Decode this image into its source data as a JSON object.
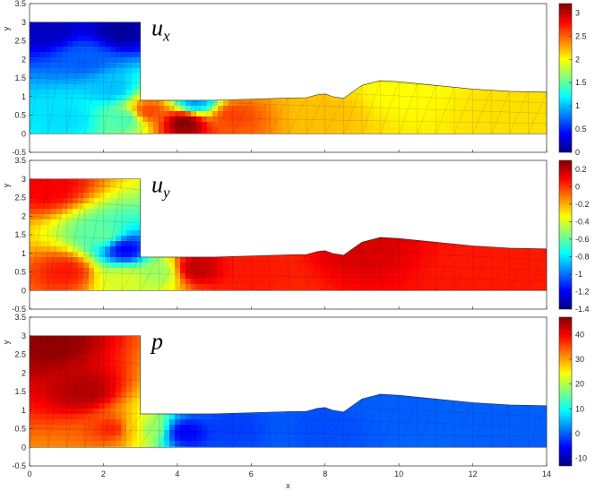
{
  "chart_data": [
    {
      "type": "heatmap",
      "field": "u",
      "field_subscript": "x",
      "xlabel": "",
      "ylabel": "y",
      "xlim": [
        0,
        14
      ],
      "ylim": [
        -0.5,
        3.5
      ],
      "x_ticks": [],
      "y_ticks": [
        "-0.5",
        "0",
        "0.5",
        "1",
        "1.5",
        "2",
        "2.5",
        "3",
        "3.5"
      ],
      "colorbar": {
        "limits": [
          0,
          3.2
        ],
        "colormap": "jet",
        "ticks": [
          "0",
          "0.5",
          "1",
          "1.5",
          "2",
          "2.5",
          "3"
        ]
      },
      "samples": [
        {
          "x": 0.5,
          "y": 2.8,
          "value": 0.2
        },
        {
          "x": 2.5,
          "y": 2.8,
          "value": 0.1
        },
        {
          "x": 1.5,
          "y": 2.0,
          "value": 0.7
        },
        {
          "x": 2.2,
          "y": 1.2,
          "value": 1.0
        },
        {
          "x": 1.0,
          "y": 0.4,
          "value": 1.1
        },
        {
          "x": 2.6,
          "y": 0.4,
          "value": 1.4
        },
        {
          "x": 3.2,
          "y": 0.6,
          "value": 2.6
        },
        {
          "x": 4.2,
          "y": 0.3,
          "value": 3.2
        },
        {
          "x": 4.5,
          "y": 0.85,
          "value": 0.9
        },
        {
          "x": 5.5,
          "y": 0.5,
          "value": 2.6
        },
        {
          "x": 8.0,
          "y": 0.5,
          "value": 2.2
        },
        {
          "x": 10.0,
          "y": 1.2,
          "value": 2.0
        },
        {
          "x": 13.0,
          "y": 0.5,
          "value": 2.1
        }
      ]
    },
    {
      "type": "heatmap",
      "field": "u",
      "field_subscript": "y",
      "xlabel": "",
      "ylabel": "y",
      "xlim": [
        0,
        14
      ],
      "ylim": [
        -0.5,
        3.5
      ],
      "x_ticks": [],
      "y_ticks": [
        "-0.5",
        "0",
        "0.5",
        "1",
        "1.5",
        "2",
        "2.5",
        "3",
        "3.5"
      ],
      "colorbar": {
        "limits": [
          -1.4,
          0.3
        ],
        "colormap": "jet",
        "ticks": [
          "-1.4",
          "-1.2",
          "-1",
          "-0.8",
          "-0.6",
          "-0.4",
          "-0.2",
          "0",
          "0.2"
        ]
      },
      "samples": [
        {
          "x": 0.5,
          "y": 2.8,
          "value": 0.1
        },
        {
          "x": 1.0,
          "y": 0.5,
          "value": 0.05
        },
        {
          "x": 2.0,
          "y": 1.5,
          "value": -0.6
        },
        {
          "x": 2.6,
          "y": 1.1,
          "value": -1.2
        },
        {
          "x": 2.6,
          "y": 0.3,
          "value": -0.4
        },
        {
          "x": 3.5,
          "y": 0.5,
          "value": -0.5
        },
        {
          "x": 4.5,
          "y": 0.6,
          "value": 0.2
        },
        {
          "x": 6.0,
          "y": 0.5,
          "value": 0.05
        },
        {
          "x": 9.0,
          "y": 1.2,
          "value": 0.15
        },
        {
          "x": 12.0,
          "y": 0.5,
          "value": 0.05
        }
      ]
    },
    {
      "type": "heatmap",
      "field": "p",
      "field_subscript": "",
      "xlabel": "x",
      "ylabel": "y",
      "xlim": [
        0,
        14
      ],
      "ylim": [
        -0.5,
        3.5
      ],
      "x_ticks": [
        "0",
        "2",
        "4",
        "6",
        "8",
        "10",
        "12",
        "14"
      ],
      "y_ticks": [
        "-0.5",
        "0",
        "0.5",
        "1",
        "1.5",
        "2",
        "2.5",
        "3",
        "3.5"
      ],
      "colorbar": {
        "limits": [
          -13,
          47
        ],
        "colormap": "jet",
        "ticks": [
          "-10",
          "0",
          "10",
          "20",
          "30",
          "40"
        ]
      },
      "samples": [
        {
          "x": 0.5,
          "y": 2.8,
          "value": 46
        },
        {
          "x": 1.5,
          "y": 1.5,
          "value": 44
        },
        {
          "x": 2.3,
          "y": 0.5,
          "value": 38
        },
        {
          "x": 2.8,
          "y": 0.5,
          "value": 28
        },
        {
          "x": 3.2,
          "y": 0.5,
          "value": 18
        },
        {
          "x": 4.2,
          "y": 0.4,
          "value": -6
        },
        {
          "x": 5.5,
          "y": 0.5,
          "value": -2
        },
        {
          "x": 8.0,
          "y": 0.5,
          "value": -1
        },
        {
          "x": 10.0,
          "y": 1.2,
          "value": 0
        },
        {
          "x": 13.0,
          "y": 0.5,
          "value": 0
        }
      ]
    }
  ],
  "domain_outline": {
    "top_boundary": [
      [
        3,
        0.9
      ],
      [
        4.5,
        0.9
      ],
      [
        5,
        0.9
      ],
      [
        6,
        0.93
      ],
      [
        7,
        0.96
      ],
      [
        7.5,
        0.97
      ],
      [
        7.8,
        1.05
      ],
      [
        8,
        1.07
      ],
      [
        8.2,
        1.0
      ],
      [
        8.5,
        0.95
      ],
      [
        9,
        1.3
      ],
      [
        9.5,
        1.43
      ],
      [
        10,
        1.4
      ],
      [
        11,
        1.3
      ],
      [
        12,
        1.2
      ],
      [
        13,
        1.14
      ],
      [
        14,
        1.12
      ]
    ],
    "inlet_box": {
      "x": [
        0,
        3
      ],
      "y": [
        0,
        3
      ]
    },
    "outlet_x": 14
  }
}
